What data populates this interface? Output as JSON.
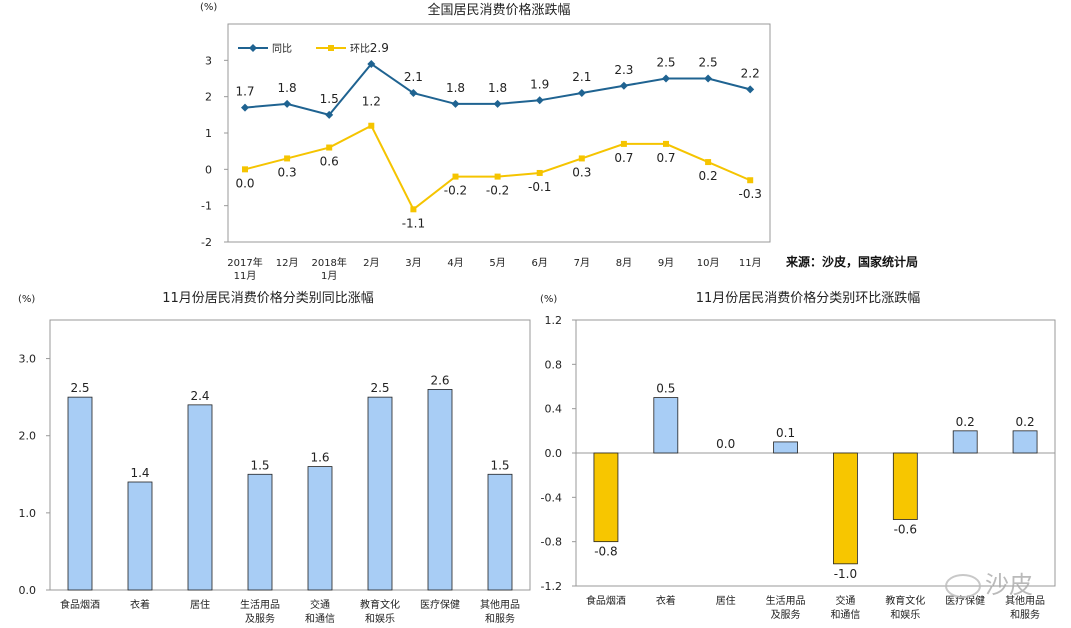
{
  "source": "来源：沙皮，国家统计局",
  "watermark": "沙皮",
  "colors": {
    "yoy": "#1f6391",
    "mom": "#f5c400",
    "bar_pos": "#a8cdf5",
    "bar_neg": "#f7c600",
    "bar_edge": "#222222"
  },
  "chart_data": [
    {
      "type": "line",
      "title": "全国居民消费价格涨跌幅",
      "ylabel": "(%)",
      "ylim": [
        -2,
        4
      ],
      "yticks": [
        "-2",
        "-1",
        "0",
        "1",
        "2",
        "3"
      ],
      "categories": [
        [
          "2017年",
          "11月"
        ],
        [
          "12月"
        ],
        [
          "2018年",
          "1月"
        ],
        [
          "2月"
        ],
        [
          "3月"
        ],
        [
          "4月"
        ],
        [
          "5月"
        ],
        [
          "6月"
        ],
        [
          "7月"
        ],
        [
          "8月"
        ],
        [
          "9月"
        ],
        [
          "10月"
        ],
        [
          "11月"
        ]
      ],
      "legend_position": "top-left",
      "series": [
        {
          "name": "同比",
          "color": "#1f6391",
          "marker": "diamond",
          "values": [
            1.7,
            1.8,
            1.5,
            2.9,
            2.1,
            1.8,
            1.8,
            1.9,
            2.1,
            2.3,
            2.5,
            2.5,
            2.2
          ],
          "labels": [
            "1.7",
            "1.8",
            "1.5",
            "2.9",
            "2.1",
            "1.8",
            "1.8",
            "1.9",
            "2.1",
            "2.3",
            "2.5",
            "2.5",
            "2.2"
          ]
        },
        {
          "name": "环比",
          "color": "#f5c400",
          "marker": "square",
          "values": [
            0.0,
            0.3,
            0.6,
            1.2,
            -1.1,
            -0.2,
            -0.2,
            -0.1,
            0.3,
            0.7,
            0.7,
            0.2,
            -0.3
          ],
          "labels": [
            "0.0",
            "0.3",
            "0.6",
            "1.2",
            "-1.1",
            "-0.2",
            "-0.2",
            "-0.1",
            "0.3",
            "0.7",
            "0.7",
            "0.2",
            "-0.3"
          ]
        }
      ]
    },
    {
      "type": "bar",
      "title": "11月份居民消费价格分类别同比涨幅",
      "ylabel": "(%)",
      "ylim": [
        0,
        3.5
      ],
      "yticks": [
        "0.0",
        "1.0",
        "2.0",
        "3.0"
      ],
      "categories": [
        [
          "食品烟酒"
        ],
        [
          "衣着"
        ],
        [
          "居住"
        ],
        [
          "生活用品",
          "及服务"
        ],
        [
          "交通",
          "和通信"
        ],
        [
          "教育文化",
          "和娱乐"
        ],
        [
          "医疗保健"
        ],
        [
          "其他用品",
          "和服务"
        ]
      ],
      "values": [
        2.5,
        1.4,
        2.4,
        1.5,
        1.6,
        2.5,
        2.6,
        1.5
      ],
      "labels": [
        "2.5",
        "1.4",
        "2.4",
        "1.5",
        "1.6",
        "2.5",
        "2.6",
        "1.5"
      ]
    },
    {
      "type": "bar",
      "title": "11月份居民消费价格分类别环比涨跌幅",
      "ylabel": "(%)",
      "ylim": [
        -1.2,
        1.2
      ],
      "yticks": [
        "-1.2",
        "-0.8",
        "-0.4",
        "0.0",
        "0.4",
        "0.8",
        "1.2"
      ],
      "categories": [
        [
          "食品烟酒"
        ],
        [
          "衣着"
        ],
        [
          "居住"
        ],
        [
          "生活用品",
          "及服务"
        ],
        [
          "交通",
          "和通信"
        ],
        [
          "教育文化",
          "和娱乐"
        ],
        [
          "医疗保健"
        ],
        [
          "其他用品",
          "和服务"
        ]
      ],
      "values": [
        -0.8,
        0.5,
        0.0,
        0.1,
        -1.0,
        -0.6,
        0.2,
        0.2
      ],
      "labels": [
        "-0.8",
        "0.5",
        "0.0",
        "0.1",
        "-1.0",
        "-0.6",
        "0.2",
        "0.2"
      ]
    }
  ]
}
